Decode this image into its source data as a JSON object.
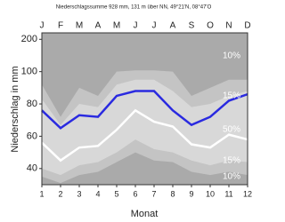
{
  "chart_data": {
    "type": "band-line",
    "title": "Niederschlagssumme 928 mm, 131 m über NN, 49°21'N, 08°47'O",
    "y_label": "Niederschlag in mm",
    "x_label": "Monat",
    "top_categories": [
      "J",
      "F",
      "M",
      "A",
      "M",
      "J",
      "J",
      "A",
      "S",
      "O",
      "N",
      "D"
    ],
    "x": [
      1,
      2,
      3,
      4,
      5,
      6,
      7,
      8,
      9,
      10,
      11,
      12
    ],
    "xlim": [
      1,
      12
    ],
    "xticks": [
      1,
      2,
      3,
      4,
      5,
      6,
      7,
      8,
      9,
      10,
      11,
      12
    ],
    "ylim": [
      30,
      220
    ],
    "yticks": [
      40,
      60,
      80,
      100,
      200
    ],
    "y_compressed_above": 100,
    "y_compression_factor": 5,
    "background_color": "#aaaaaa",
    "bands": [
      {
        "color": "#c4c4c4",
        "values": [
          92,
          72,
          90,
          85,
          100,
          104,
          104,
          100,
          85,
          90,
          95,
          95
        ]
      },
      {
        "color": "#d8d8d8",
        "values": [
          83,
          67,
          80,
          78,
          92,
          95,
          95,
          88,
          78,
          80,
          85,
          88
        ]
      },
      {
        "color": "#c4c4c4",
        "values": [
          40,
          36,
          42,
          44,
          50,
          58,
          52,
          50,
          45,
          42,
          45,
          44
        ]
      },
      {
        "color": "#aaaaaa",
        "values": [
          35,
          31,
          36,
          38,
          44,
          50,
          45,
          44,
          38,
          36,
          38,
          36
        ]
      }
    ],
    "series": [
      {
        "color": "#ffffff",
        "values": [
          56,
          45,
          53,
          54,
          64,
          76,
          69,
          66,
          55,
          53,
          61,
          58
        ]
      },
      {
        "color": "#2a2ae0",
        "values": [
          76,
          65,
          73,
          72,
          85,
          88,
          88,
          76,
          67,
          72,
          82,
          86
        ]
      }
    ],
    "annotations": [
      "10%",
      "15%",
      "50%",
      "15%",
      "10%"
    ]
  }
}
